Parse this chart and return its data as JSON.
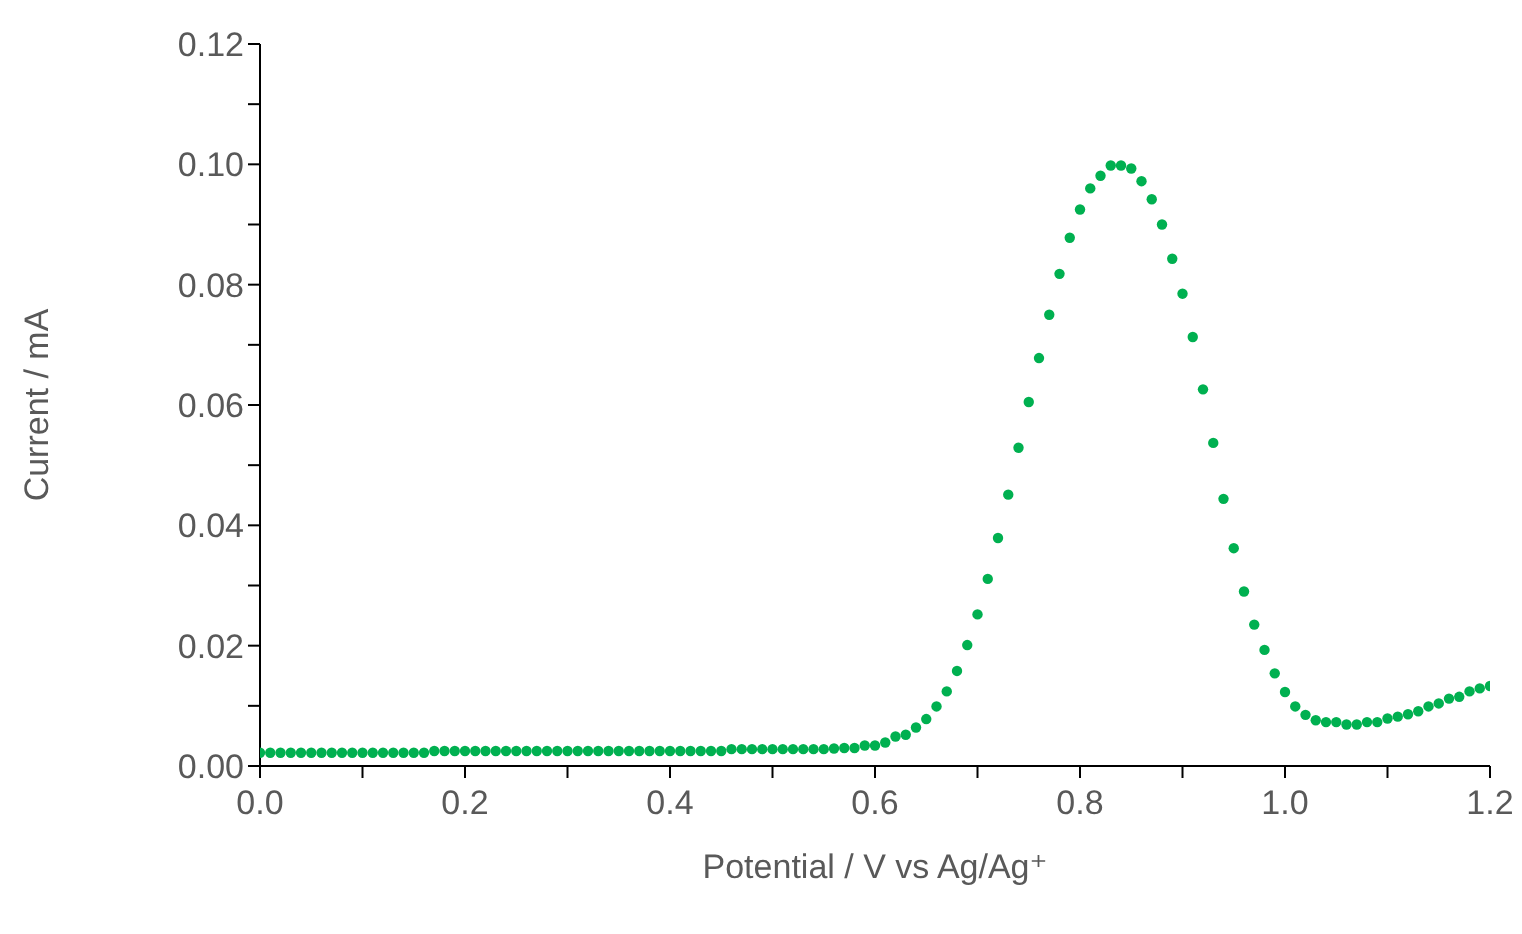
{
  "chart_data": {
    "type": "scatter",
    "xlabel": "Potential / V vs Ag/Ag⁺",
    "ylabel": "Current / mA",
    "marker": "circle",
    "grid": false,
    "xlim": [
      0,
      1.2
    ],
    "ylim": [
      0,
      0.12
    ],
    "xticks": [
      {
        "value": 0,
        "label": "0.0"
      },
      {
        "value": 0.1,
        "label": null
      },
      {
        "value": 0.2,
        "label": "0.2"
      },
      {
        "value": 0.3,
        "label": null
      },
      {
        "value": 0.4,
        "label": "0.4"
      },
      {
        "value": 0.5,
        "label": null
      },
      {
        "value": 0.6,
        "label": "0.6"
      },
      {
        "value": 0.7,
        "label": null
      },
      {
        "value": 0.8,
        "label": "0.8"
      },
      {
        "value": 0.9,
        "label": null
      },
      {
        "value": 1.0,
        "label": "1.0"
      },
      {
        "value": 1.1,
        "label": null
      },
      {
        "value": 1.2,
        "label": "1.2"
      }
    ],
    "yticks": [
      {
        "value": 0,
        "label": "0.00"
      },
      {
        "value": 0.01,
        "label": null
      },
      {
        "value": 0.02,
        "label": "0.02"
      },
      {
        "value": 0.03,
        "label": null
      },
      {
        "value": 0.04,
        "label": "0.04"
      },
      {
        "value": 0.05,
        "label": null
      },
      {
        "value": 0.06,
        "label": "0.06"
      },
      {
        "value": 0.07,
        "label": null
      },
      {
        "value": 0.08,
        "label": "0.08"
      },
      {
        "value": 0.09,
        "label": null
      },
      {
        "value": 0.1,
        "label": "0.10"
      },
      {
        "value": 0.11,
        "label": null
      },
      {
        "value": 0.12,
        "label": "0.12"
      }
    ],
    "x": [
      0,
      0.01,
      0.02,
      0.03,
      0.04,
      0.05,
      0.06,
      0.07,
      0.08,
      0.09,
      0.1,
      0.11,
      0.12,
      0.13,
      0.14,
      0.15,
      0.16,
      0.17,
      0.18,
      0.19,
      0.2,
      0.21,
      0.22,
      0.23,
      0.24,
      0.25,
      0.26,
      0.27,
      0.28,
      0.29,
      0.3,
      0.31,
      0.32,
      0.33,
      0.34,
      0.35,
      0.36,
      0.37,
      0.38,
      0.39,
      0.4,
      0.41,
      0.42,
      0.43,
      0.44,
      0.45,
      0.46,
      0.47,
      0.48,
      0.49,
      0.5,
      0.51,
      0.52,
      0.53,
      0.54,
      0.55,
      0.56,
      0.57,
      0.58,
      0.59,
      0.6,
      0.61,
      0.62,
      0.63,
      0.64,
      0.65,
      0.66,
      0.67,
      0.68,
      0.69,
      0.7,
      0.71,
      0.72,
      0.73,
      0.74,
      0.75,
      0.76,
      0.77,
      0.78,
      0.79,
      0.8,
      0.81,
      0.82,
      0.83,
      0.84,
      0.85,
      0.86,
      0.87,
      0.88,
      0.89,
      0.9,
      0.91,
      0.92,
      0.93,
      0.94,
      0.95,
      0.96,
      0.97,
      0.98,
      0.99,
      1.0,
      1.01,
      1.02,
      1.03,
      1.04,
      1.05,
      1.06,
      1.07,
      1.08,
      1.09,
      1.1,
      1.11,
      1.12,
      1.13,
      1.14,
      1.15,
      1.16,
      1.17,
      1.18,
      1.19,
      1.2
    ],
    "series": [
      {
        "color": "#00b050",
        "values": [
          0.0022,
          0.0022,
          0.0022,
          0.0022,
          0.0022,
          0.0022,
          0.0022,
          0.0022,
          0.0022,
          0.0022,
          0.0022,
          0.0022,
          0.0022,
          0.0022,
          0.0022,
          0.0022,
          0.0022,
          0.0025,
          0.0025,
          0.0025,
          0.0025,
          0.0025,
          0.0025,
          0.0025,
          0.0025,
          0.0025,
          0.0025,
          0.0025,
          0.0025,
          0.0025,
          0.0025,
          0.0025,
          0.0025,
          0.0025,
          0.0025,
          0.0025,
          0.0025,
          0.0025,
          0.0025,
          0.0025,
          0.0025,
          0.0025,
          0.0025,
          0.0025,
          0.0025,
          0.0025,
          0.0028,
          0.0028,
          0.0028,
          0.0028,
          0.0028,
          0.0028,
          0.0028,
          0.0028,
          0.0028,
          0.0028,
          0.0029,
          0.003,
          0.003,
          0.0034,
          0.0034,
          0.0039,
          0.0049,
          0.0052,
          0.0064,
          0.0078,
          0.0099,
          0.0124,
          0.0158,
          0.0201,
          0.0252,
          0.0311,
          0.0379,
          0.0451,
          0.0529,
          0.0605,
          0.0678,
          0.075,
          0.0818,
          0.0878,
          0.0925,
          0.096,
          0.0981,
          0.0998,
          0.0998,
          0.0993,
          0.0972,
          0.0942,
          0.09,
          0.0843,
          0.0785,
          0.0713,
          0.0626,
          0.0537,
          0.0444,
          0.0362,
          0.029,
          0.0235,
          0.0193,
          0.0154,
          0.0123,
          0.0099,
          0.0085,
          0.0076,
          0.0073,
          0.0073,
          0.0069,
          0.0069,
          0.0073,
          0.0073,
          0.0079,
          0.0082,
          0.0086,
          0.0091,
          0.0099,
          0.0104,
          0.0112,
          0.0115,
          0.0124,
          0.0129,
          0.0133
        ]
      }
    ]
  }
}
